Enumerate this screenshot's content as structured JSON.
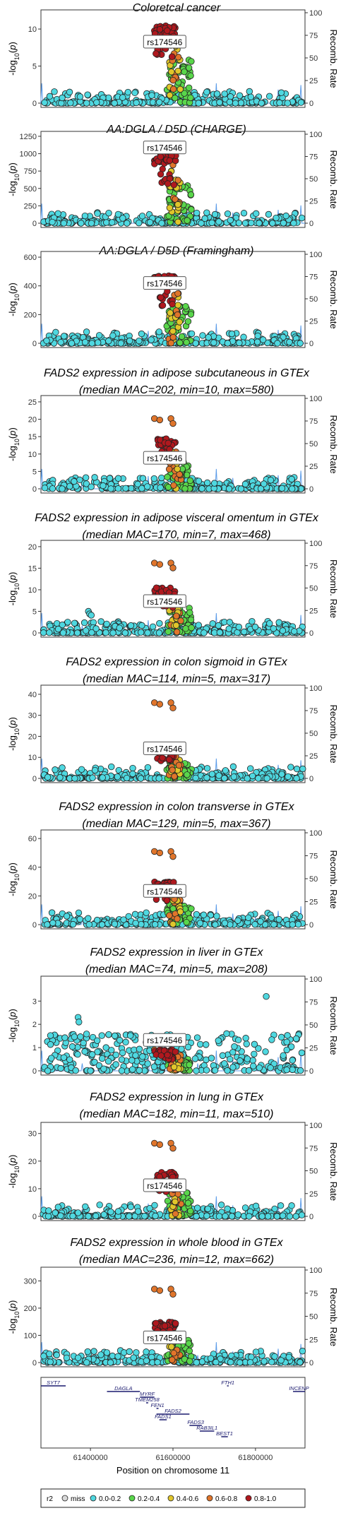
{
  "chart_data": {
    "type": "scatter",
    "region": "chr11",
    "lead_snp": "rs174546",
    "x_axis_label": "Position on chromosome 11",
    "x_ticks": [
      61400000,
      61600000,
      61800000
    ],
    "x_range": [
      61280000,
      61920000
    ],
    "recomb_axis_label": "Recomb. Rate",
    "recomb_ticks": [
      0,
      25,
      50,
      75,
      100
    ],
    "panels": [
      {
        "title_lines": [
          "Coloretcal cancer"
        ],
        "ylabel": "-log10(p)",
        "yticks": [
          0,
          5,
          10
        ],
        "ymax": 12.2,
        "peak_red": 10.6,
        "high_orange": 0,
        "pcount": 3,
        "label_y": 8.2
      },
      {
        "title_lines": [
          "AA:DGLA / D5D (CHARGE)"
        ],
        "ylabel": "-log10(p)",
        "yticks": [
          0,
          250,
          500,
          750,
          1000,
          1250
        ],
        "ymax": 1280,
        "peak_red": 1000,
        "high_orange": 900,
        "pcount": 4,
        "label_y": 1080
      },
      {
        "title_lines": [
          "AA:DGLA / D5D (Framingham)"
        ],
        "ylabel": "-log10(p)",
        "yticks": [
          0,
          200,
          400,
          600
        ],
        "ymax": 620,
        "peak_red": 470,
        "high_orange": 460,
        "pcount": 5,
        "label_y": 415
      },
      {
        "title_lines": [
          "FADS2 expression in adipose subcutaneous in GTEx",
          "(median MAC=202, min=10, max=580)"
        ],
        "ylabel": "-log10(p)",
        "yticks": [
          0,
          5,
          10,
          15,
          20,
          25
        ],
        "ymax": 26,
        "peak_red": 14.5,
        "high_orange": 20.2,
        "pcount": 6,
        "label_y": 8.7
      },
      {
        "title_lines": [
          "FADS2 expression in adipose visceral omentum in GTEx",
          "(median MAC=170, min=7, max=468)"
        ],
        "ylabel": "-log10(p)",
        "yticks": [
          0,
          5,
          10,
          15,
          20
        ],
        "ymax": 20.8,
        "peak_red": 10.5,
        "high_orange": 16.2,
        "pcount": 7,
        "label_y": 7.2
      },
      {
        "title_lines": [
          "FADS2 expression in colon sigmoid in GTEx",
          "(median MAC=114, min=5, max=317)"
        ],
        "ylabel": "-log10(p)",
        "yticks": [
          0,
          10,
          20,
          30,
          40
        ],
        "ymax": 43,
        "peak_red": 15,
        "high_orange": 36,
        "pcount": 8,
        "label_y": 14
      },
      {
        "title_lines": [
          "FADS2 expression in colon transverse in GTEx",
          "(median MAC=129, min=5, max=367)"
        ],
        "ylabel": "-log10(p)",
        "yticks": [
          0,
          20,
          40,
          60
        ],
        "ymax": 64,
        "peak_red": 30,
        "high_orange": 51,
        "pcount": 9,
        "label_y": 23
      },
      {
        "title_lines": [
          "FADS2 expression in liver in GTEx",
          "(median MAC=74, min=5, max=208)"
        ],
        "ylabel": "-log10(p)",
        "yticks": [
          0,
          1,
          2,
          3
        ],
        "ymax": 3.95,
        "peak_red": 0.9,
        "high_orange": 0.9,
        "pcount": 10,
        "label_y": 1.3
      },
      {
        "title_lines": [
          "FADS2 expression in lung in GTEx",
          "(median MAC=182, min=11, max=510)"
        ],
        "ylabel": "-log10(p)",
        "yticks": [
          0,
          10,
          20,
          30
        ],
        "ymax": 33,
        "peak_red": 16,
        "high_orange": 26.5,
        "pcount": 11,
        "label_y": 11
      },
      {
        "title_lines": [
          "FADS2 expression in whole blood in GTEx",
          "(median MAC=236, min=12, max=662)"
        ],
        "ylabel": "-log10(p)",
        "yticks": [
          0,
          100,
          200,
          300
        ],
        "ymax": 340,
        "peak_red": 150,
        "high_orange": 270,
        "pcount": 12,
        "label_y": 90
      }
    ],
    "genes": [
      {
        "name": "SYT7",
        "start": 61280000,
        "end": 61340000,
        "row": 0,
        "label_side": "above"
      },
      {
        "name": "DAGLA",
        "start": 61440000,
        "end": 61520000,
        "row": 1,
        "label_side": "above"
      },
      {
        "name": "MYRF",
        "start": 61520000,
        "end": 61555000,
        "row": 2,
        "label_side": "above"
      },
      {
        "name": "TMEM258",
        "start": 61535000,
        "end": 61540000,
        "row": 3,
        "label_side": "above"
      },
      {
        "name": "FEN1",
        "start": 61560000,
        "end": 61565000,
        "row": 4,
        "label_side": "above"
      },
      {
        "name": "FADS2",
        "start": 61560000,
        "end": 61640000,
        "row": 5,
        "label_side": "above"
      },
      {
        "name": "FADS1",
        "start": 61567000,
        "end": 61585000,
        "row": 6,
        "label_side": "above"
      },
      {
        "name": "FADS3",
        "start": 61640000,
        "end": 61670000,
        "row": 7,
        "label_side": "above"
      },
      {
        "name": "RAB3IL1",
        "start": 61665000,
        "end": 61700000,
        "row": 8,
        "label_side": "above"
      },
      {
        "name": "BEST1",
        "start": 61717000,
        "end": 61733000,
        "row": 9,
        "label_side": "above"
      },
      {
        "name": "FTH1",
        "start": 61731000,
        "end": 61735000,
        "row": 0,
        "label_side": "above"
      },
      {
        "name": "INCENP",
        "start": 61891000,
        "end": 61920000,
        "row": 1,
        "label_side": "above"
      }
    ],
    "legend": {
      "title": "r2",
      "items": [
        {
          "label": "miss",
          "color": "#d9d9d9"
        },
        {
          "label": "0.0-0.2",
          "color": "#4fd8e0"
        },
        {
          "label": "0.2-0.4",
          "color": "#59d64b"
        },
        {
          "label": "0.4-0.6",
          "color": "#e0c62b"
        },
        {
          "label": "0.6-0.8",
          "color": "#e0752b"
        },
        {
          "label": "0.8-1.0",
          "color": "#b0181e"
        }
      ]
    }
  }
}
